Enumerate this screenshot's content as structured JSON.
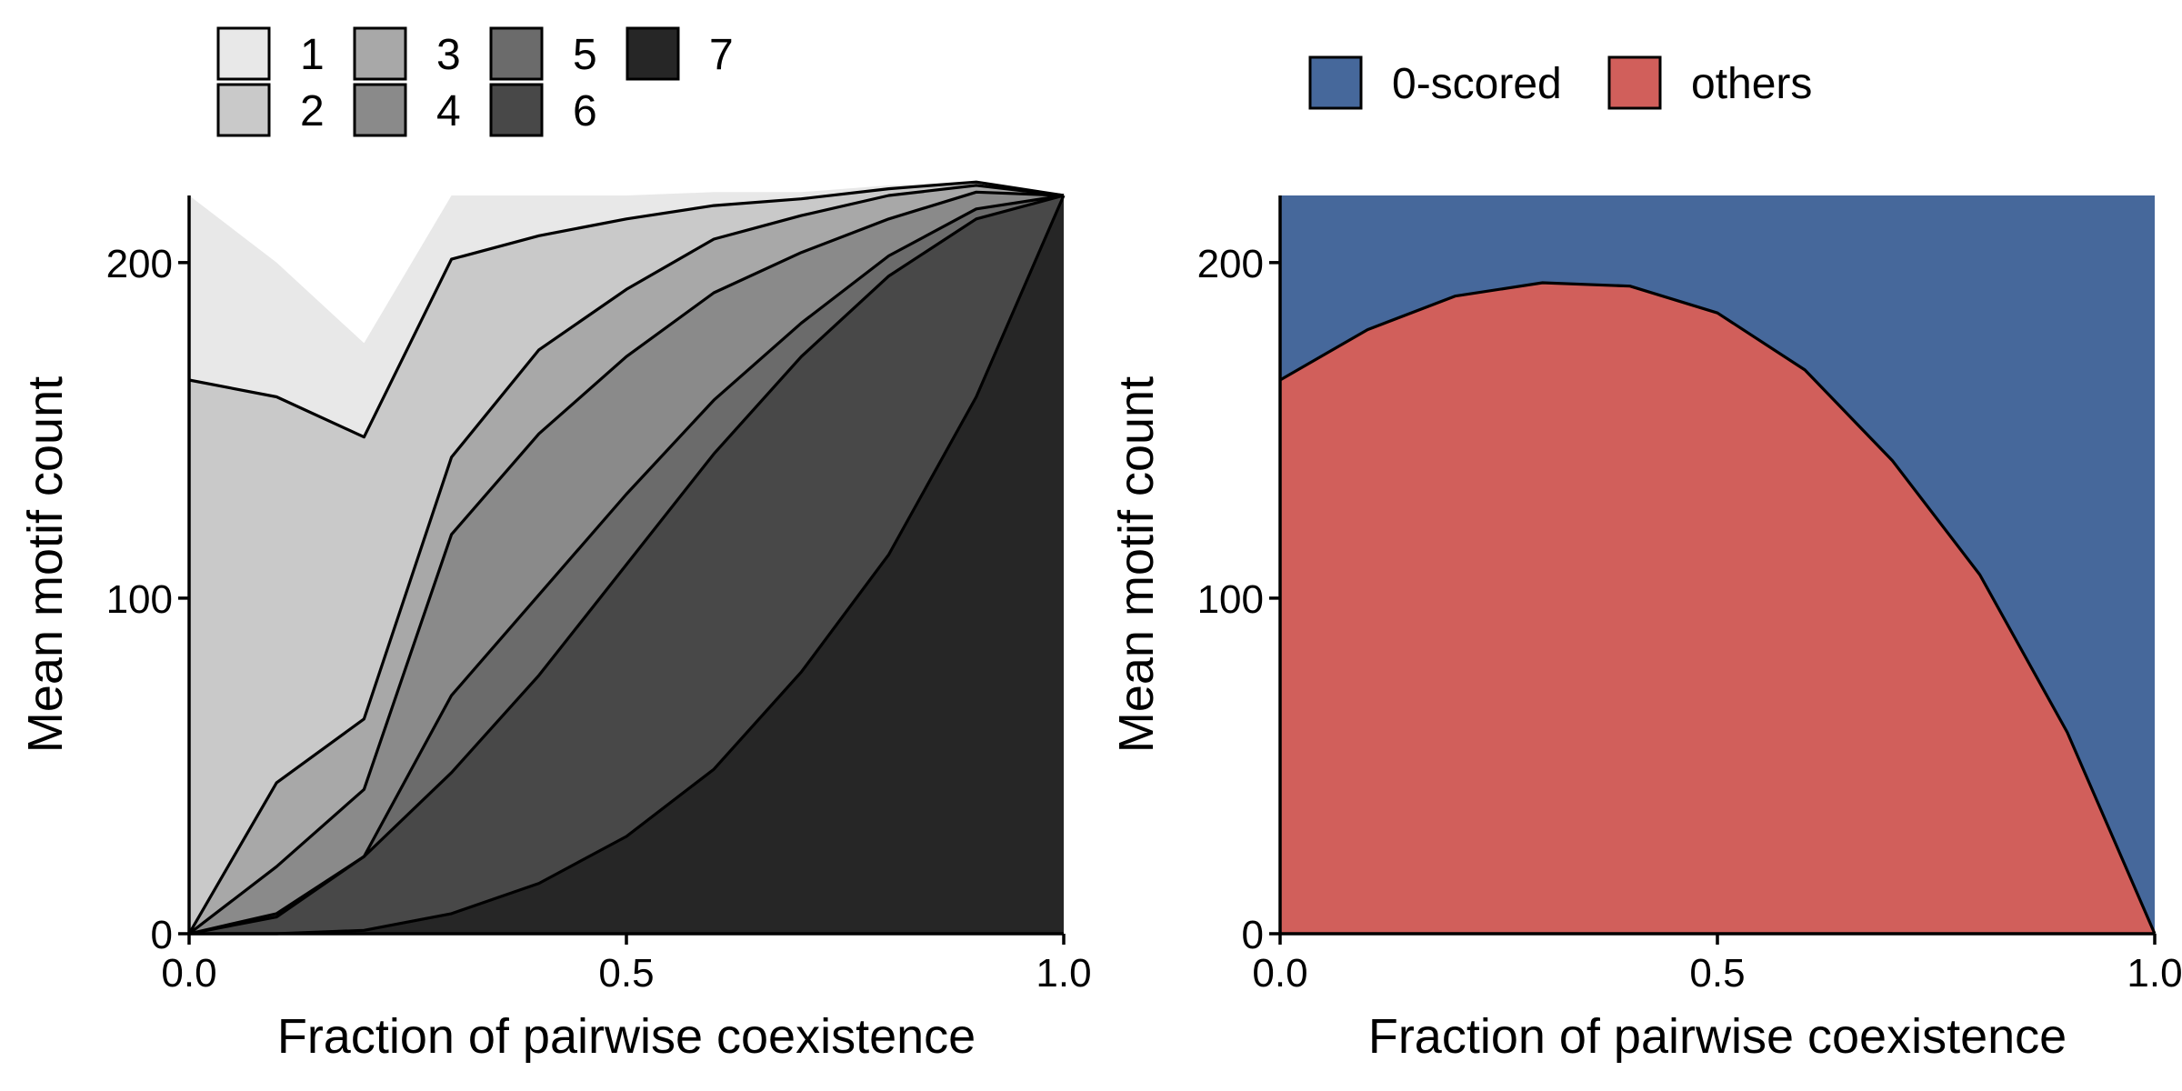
{
  "chart_data": [
    {
      "type": "area",
      "stacked": true,
      "x": [
        0.0,
        0.1,
        0.2,
        0.3,
        0.4,
        0.5,
        0.6,
        0.7,
        0.8,
        0.9,
        1.0
      ],
      "series": [
        {
          "name": "7",
          "color": "#262626",
          "values": [
            0,
            0,
            1,
            6,
            15,
            29,
            49,
            78,
            113,
            160,
            220
          ]
        },
        {
          "name": "6",
          "color": "#484848",
          "values": [
            0,
            5,
            22,
            42,
            62,
            81,
            94,
            94,
            83,
            53,
            0
          ]
        },
        {
          "name": "5",
          "color": "#6b6b6b",
          "values": [
            0,
            1,
            0,
            23,
            24,
            21,
            16,
            10,
            6,
            3,
            0
          ]
        },
        {
          "name": "4",
          "color": "#8a8a8a",
          "values": [
            0,
            14,
            20,
            48,
            48,
            41,
            32,
            21,
            11,
            5,
            0
          ]
        },
        {
          "name": "3",
          "color": "#a8a8a8",
          "values": [
            0,
            25,
            21,
            23,
            25,
            20,
            16,
            11,
            7,
            2,
            0
          ]
        },
        {
          "name": "2",
          "color": "#c9c9c9",
          "values": [
            165,
            115,
            84,
            59,
            34,
            21,
            10,
            5,
            2,
            1,
            0
          ]
        },
        {
          "name": "1",
          "color": "#e8e8e8",
          "values": [
            55,
            40,
            28,
            19,
            12,
            7,
            4,
            2,
            1,
            0,
            0
          ]
        }
      ],
      "legend": [
        "1",
        "2",
        "3",
        "4",
        "5",
        "6",
        "7"
      ],
      "xlabel": "Fraction of pairwise coexistence",
      "ylabel": "Mean motif count",
      "xlim": [
        0,
        1
      ],
      "ylim": [
        0,
        220
      ],
      "xticks": [
        "0.0",
        "0.5",
        "1.0"
      ],
      "yticks": [
        "0",
        "100",
        "200"
      ]
    },
    {
      "type": "area",
      "stacked": true,
      "x": [
        0.0,
        0.1,
        0.2,
        0.3,
        0.4,
        0.5,
        0.6,
        0.7,
        0.8,
        0.9,
        1.0
      ],
      "series": [
        {
          "name": "others",
          "color": "#d15f5b",
          "values": [
            165,
            180,
            190,
            194,
            193,
            185,
            168,
            141,
            107,
            60,
            0
          ]
        },
        {
          "name": "0-scored",
          "color": "#46689b",
          "values": [
            55,
            40,
            30,
            26,
            27,
            35,
            52,
            79,
            113,
            160,
            220
          ]
        }
      ],
      "legend": [
        "0-scored",
        "others"
      ],
      "xlabel": "Fraction of pairwise coexistence",
      "ylabel": "Mean motif count",
      "xlim": [
        0,
        1
      ],
      "ylim": [
        0,
        220
      ],
      "xticks": [
        "0.0",
        "0.5",
        "1.0"
      ],
      "yticks": [
        "0",
        "100",
        "200"
      ]
    }
  ]
}
